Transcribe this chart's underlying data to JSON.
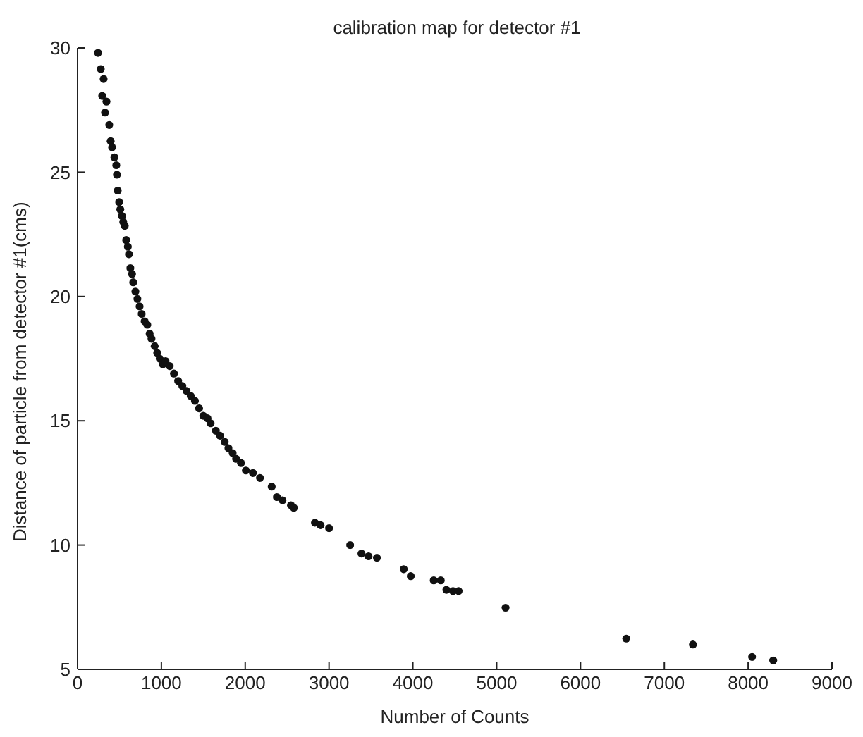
{
  "chart_data": {
    "type": "scatter",
    "title": "calibration map for detector #1",
    "xlabel": "Number of Counts",
    "ylabel": "Distance of particle from detector #1(cms)",
    "xlim": [
      0,
      9000
    ],
    "xticks": [
      0,
      1000,
      2000,
      3000,
      4000,
      5000,
      6000,
      7000,
      8000,
      9000
    ],
    "ylim": [
      5,
      30
    ],
    "yticks": [
      5,
      10,
      15,
      20,
      25,
      30
    ],
    "grid": false,
    "legend": false,
    "marker": "circle",
    "series": [
      {
        "color": "#111111",
        "x": [
          244,
          277,
          294,
          311,
          328,
          345,
          378,
          395,
          412,
          440,
          462,
          470,
          479,
          496,
          510,
          529,
          545,
          563,
          580,
          600,
          613,
          630,
          650,
          664,
          690,
          714,
          740,
          765,
          800,
          832,
          860,
          882,
          920,
          950,
          980,
          1017,
          1050,
          1100,
          1150,
          1200,
          1250,
          1300,
          1350,
          1400,
          1450,
          1500,
          1550,
          1588,
          1650,
          1700,
          1756,
          1800,
          1850,
          1891,
          1950,
          2008,
          2092,
          2176,
          2316,
          2378,
          2445,
          2546,
          2580,
          2832,
          2899,
          3000,
          3252,
          3387,
          3471,
          3571,
          3891,
          3975,
          4249,
          4333,
          4400,
          4479,
          4546,
          5106,
          6546,
          7341,
          8047,
          8299
        ],
        "values": [
          29.8,
          29.15,
          28.07,
          28.75,
          27.4,
          27.84,
          26.9,
          26.25,
          26.0,
          25.6,
          25.28,
          24.9,
          24.26,
          23.8,
          23.5,
          23.24,
          23.0,
          22.84,
          22.27,
          22.0,
          21.7,
          21.14,
          20.9,
          20.57,
          20.2,
          19.9,
          19.6,
          19.3,
          19.0,
          18.86,
          18.5,
          18.3,
          18.0,
          17.73,
          17.5,
          17.27,
          17.4,
          17.2,
          16.9,
          16.6,
          16.4,
          16.2,
          16.0,
          15.8,
          15.5,
          15.2,
          15.1,
          14.9,
          14.6,
          14.4,
          14.15,
          13.9,
          13.7,
          13.47,
          13.3,
          13.0,
          12.9,
          12.7,
          12.35,
          11.93,
          11.8,
          11.6,
          11.5,
          10.9,
          10.8,
          10.68,
          10.0,
          9.66,
          9.55,
          9.49,
          9.03,
          8.75,
          8.58,
          8.58,
          8.2,
          8.15,
          8.15,
          7.48,
          6.24,
          6.0,
          5.5,
          5.36
        ]
      }
    ]
  }
}
